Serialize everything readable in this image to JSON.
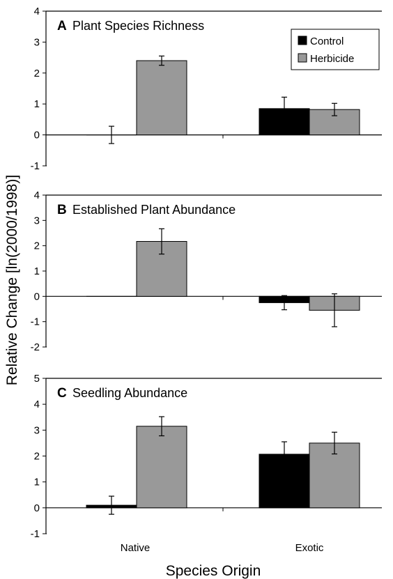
{
  "chart_data": [
    {
      "type": "bar",
      "panel": "A",
      "title": "Plant Species Richness",
      "categories": [
        "Native",
        "Exotic"
      ],
      "series": [
        {
          "name": "Control",
          "color": "#000000",
          "values": [
            0.0,
            0.85
          ],
          "errors": [
            0.28,
            0.37
          ]
        },
        {
          "name": "Herbicide",
          "color": "#999999",
          "values": [
            2.4,
            0.82
          ],
          "errors": [
            0.15,
            0.2
          ]
        }
      ],
      "ylim": [
        -1,
        4
      ],
      "yticks": [
        "-1",
        "0",
        "1",
        "2",
        "3",
        "4"
      ],
      "legend": "top-right",
      "grid": false
    },
    {
      "type": "bar",
      "panel": "B",
      "title": "Established Plant Abundance",
      "categories": [
        "Native",
        "Exotic"
      ],
      "series": [
        {
          "name": "Control",
          "color": "#000000",
          "values": [
            0.0,
            -0.25
          ],
          "errors": [
            0.0,
            0.28
          ]
        },
        {
          "name": "Herbicide",
          "color": "#999999",
          "values": [
            2.17,
            -0.55
          ],
          "errors": [
            0.5,
            0.65
          ]
        }
      ],
      "ylim": [
        -2,
        4
      ],
      "yticks": [
        "-2",
        "-1",
        "0",
        "1",
        "2",
        "3",
        "4"
      ],
      "grid": false
    },
    {
      "type": "bar",
      "panel": "C",
      "title": "Seedling Abundance",
      "categories": [
        "Native",
        "Exotic"
      ],
      "series": [
        {
          "name": "Control",
          "color": "#000000",
          "values": [
            0.1,
            2.07
          ],
          "errors": [
            0.35,
            0.48
          ]
        },
        {
          "name": "Herbicide",
          "color": "#999999",
          "values": [
            3.15,
            2.5
          ],
          "errors": [
            0.37,
            0.42
          ]
        }
      ],
      "ylim": [
        -1,
        5
      ],
      "yticks": [
        "-1",
        "0",
        "1",
        "2",
        "3",
        "4",
        "5"
      ],
      "grid": false
    }
  ],
  "legend": [
    {
      "label": "Control",
      "color": "#000000"
    },
    {
      "label": "Herbicide",
      "color": "#999999"
    }
  ],
  "xlabel": "Species Origin",
  "ylabel": "Relative Change [ln(2000/1998)]",
  "xcategories": [
    "Native",
    "Exotic"
  ]
}
